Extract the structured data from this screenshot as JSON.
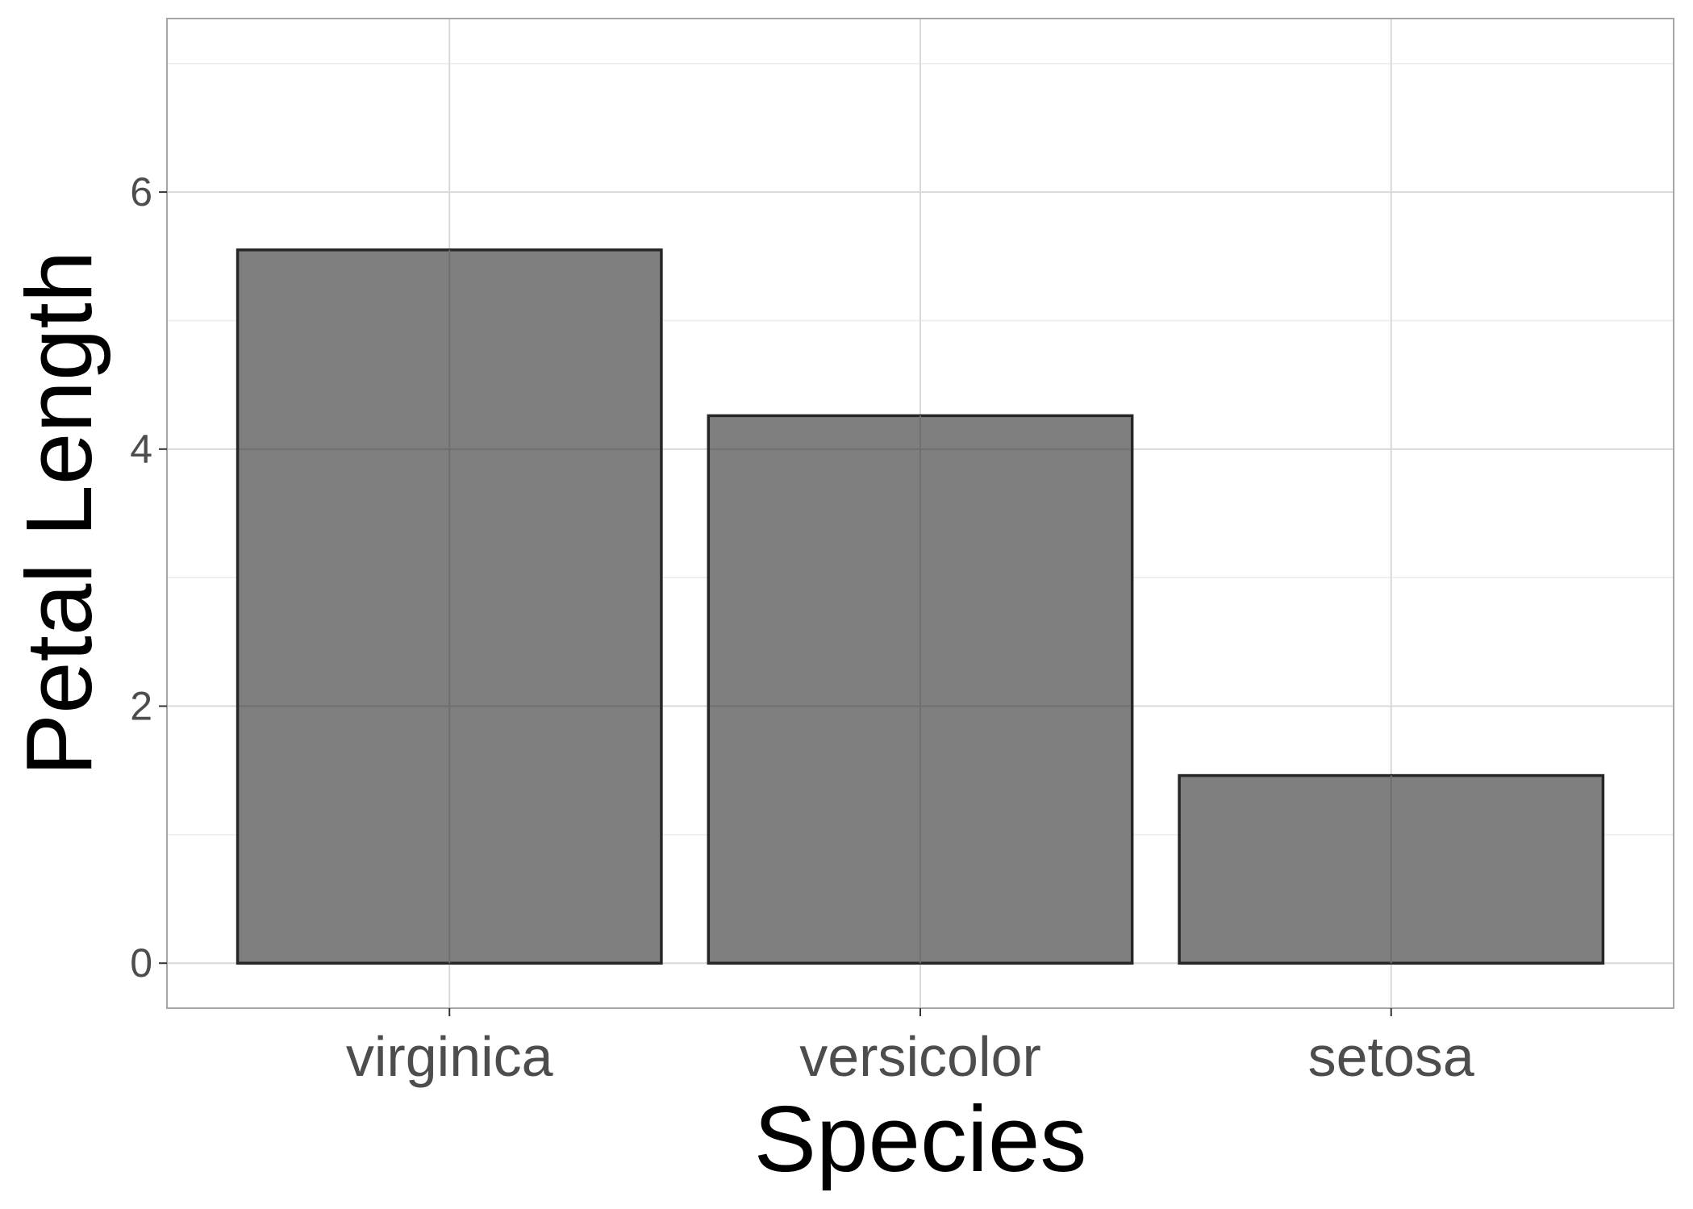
{
  "chart_data": {
    "type": "bar",
    "categories": [
      "virginica",
      "versicolor",
      "setosa"
    ],
    "values": [
      5.55,
      4.26,
      1.46
    ],
    "title": "",
    "xlabel": "Species",
    "ylabel": "Petal Length",
    "ylim": [
      -0.35,
      7.35
    ],
    "yticks": [
      0,
      2,
      4,
      6
    ],
    "ytick_labels": [
      "0",
      "2",
      "4",
      "6"
    ],
    "grid": true,
    "legend": "none",
    "colors": {
      "bar_fill": "#7f7f7f",
      "bar_stroke": "#262626",
      "grid_major": "#d9d9d9",
      "grid_minor": "#ececec",
      "panel_border": "#a6a6a6",
      "tick_text": "#4d4d4d",
      "axis_title": "#000000"
    }
  }
}
